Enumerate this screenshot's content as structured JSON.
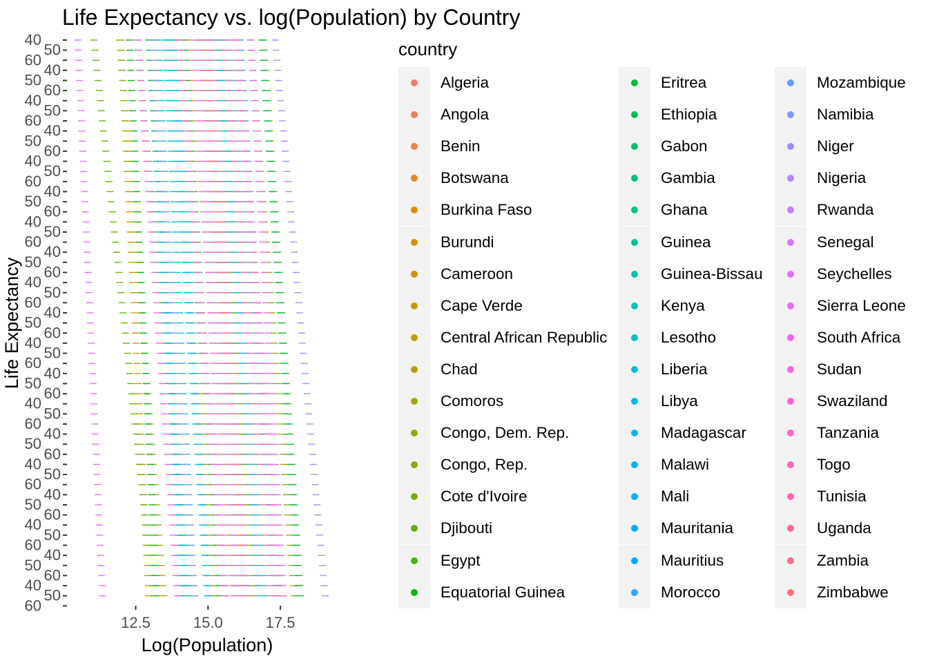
{
  "chart_data": {
    "type": "scatter",
    "title": "Life Expectancy vs. log(Population) by Country",
    "xlabel": "Log(Population)",
    "ylabel": "Life Expectancy",
    "xlim": [
      10.1,
      20.1
    ],
    "x_ticks": [
      12.5,
      15.0,
      17.5
    ],
    "x_tick_labels": [
      "12.5",
      "15.0",
      "17.5"
    ],
    "y_tick_count": 57,
    "y_tick_labels_overlapping": [
      "40",
      "50",
      "60"
    ],
    "grid": false,
    "legend": {
      "title": "country",
      "placement": "right",
      "columns": 3
    },
    "palette": {
      "type": "hue",
      "hue_start": 15,
      "hue_end": 375,
      "chroma": 100,
      "luminance": 65
    },
    "series": [
      {
        "name": "Algeria",
        "x_first": 16.04,
        "x_last": 17.32
      },
      {
        "name": "Angola",
        "x_first": 15.26,
        "x_last": 16.34
      },
      {
        "name": "Benin",
        "x_first": 14.37,
        "x_last": 15.9
      },
      {
        "name": "Botswana",
        "x_first": 12.99,
        "x_last": 14.31
      },
      {
        "name": "Burkina Faso",
        "x_first": 15.31,
        "x_last": 16.48
      },
      {
        "name": "Burundi",
        "x_first": 14.71,
        "x_last": 15.94
      },
      {
        "name": "Cameroon",
        "x_first": 15.43,
        "x_last": 16.69
      },
      {
        "name": "Cape Verde",
        "x_first": 11.98,
        "x_last": 12.95
      },
      {
        "name": "Central African Republic",
        "x_first": 14.07,
        "x_last": 15.29
      },
      {
        "name": "Chad",
        "x_first": 14.8,
        "x_last": 16.14
      },
      {
        "name": "Comoros",
        "x_first": 11.94,
        "x_last": 13.47
      },
      {
        "name": "Congo, Dem. Rep.",
        "x_first": 16.46,
        "x_last": 17.98
      },
      {
        "name": "Congo, Rep.",
        "x_first": 13.65,
        "x_last": 15.15
      },
      {
        "name": "Cote d'Ivoire",
        "x_first": 14.91,
        "x_last": 16.71
      },
      {
        "name": "Djibouti",
        "x_first": 11.05,
        "x_last": 13.12
      },
      {
        "name": "Egypt",
        "x_first": 16.92,
        "x_last": 18.2
      },
      {
        "name": "Equatorial Guinea",
        "x_first": 12.28,
        "x_last": 13.22
      },
      {
        "name": "Eritrea",
        "x_first": 14.18,
        "x_last": 15.41
      },
      {
        "name": "Ethiopia",
        "x_first": 16.86,
        "x_last": 18.15
      },
      {
        "name": "Gabon",
        "x_first": 12.95,
        "x_last": 14.19
      },
      {
        "name": "Gambia",
        "x_first": 12.54,
        "x_last": 14.34
      },
      {
        "name": "Ghana",
        "x_first": 15.53,
        "x_last": 16.95
      },
      {
        "name": "Guinea",
        "x_first": 14.79,
        "x_last": 16.11
      },
      {
        "name": "Guinea-Bissau",
        "x_first": 13.27,
        "x_last": 14.2
      },
      {
        "name": "Kenya",
        "x_first": 15.68,
        "x_last": 17.39
      },
      {
        "name": "Lesotho",
        "x_first": 13.53,
        "x_last": 14.51
      },
      {
        "name": "Liberia",
        "x_first": 13.66,
        "x_last": 14.98
      },
      {
        "name": "Libya",
        "x_first": 13.83,
        "x_last": 15.61
      },
      {
        "name": "Madagascar",
        "x_first": 15.38,
        "x_last": 16.77
      },
      {
        "name": "Malawi",
        "x_first": 14.89,
        "x_last": 16.4
      },
      {
        "name": "Mali",
        "x_first": 15.16,
        "x_last": 16.3
      },
      {
        "name": "Mauritania",
        "x_first": 13.84,
        "x_last": 15.0
      },
      {
        "name": "Mauritius",
        "x_first": 13.16,
        "x_last": 14.04
      },
      {
        "name": "Morocco",
        "x_first": 16.11,
        "x_last": 17.34
      },
      {
        "name": "Mozambique",
        "x_first": 15.68,
        "x_last": 16.81
      },
      {
        "name": "Namibia",
        "x_first": 13.1,
        "x_last": 14.54
      },
      {
        "name": "Niger",
        "x_first": 15.03,
        "x_last": 16.37
      },
      {
        "name": "Nigeria",
        "x_first": 17.32,
        "x_last": 19.05
      },
      {
        "name": "Rwanda",
        "x_first": 14.74,
        "x_last": 16.0
      },
      {
        "name": "Senegal",
        "x_first": 14.83,
        "x_last": 16.32
      },
      {
        "name": "Seychelles",
        "x_first": 10.5,
        "x_last": 11.35
      },
      {
        "name": "Sierra Leone",
        "x_first": 14.58,
        "x_last": 15.63
      },
      {
        "name": "South Africa",
        "x_first": 16.48,
        "x_last": 17.6
      },
      {
        "name": "Sudan",
        "x_first": 15.96,
        "x_last": 17.56
      },
      {
        "name": "Swaziland",
        "x_first": 12.58,
        "x_last": 13.94
      },
      {
        "name": "Tanzania",
        "x_first": 15.93,
        "x_last": 17.46
      },
      {
        "name": "Togo",
        "x_first": 14.01,
        "x_last": 15.56
      },
      {
        "name": "Tunisia",
        "x_first": 15.11,
        "x_last": 16.15
      },
      {
        "name": "Uganda",
        "x_first": 15.58,
        "x_last": 17.19
      },
      {
        "name": "Zambia",
        "x_first": 14.8,
        "x_last": 16.28
      },
      {
        "name": "Zimbabwe",
        "x_first": 14.94,
        "x_last": 16.33
      }
    ]
  }
}
